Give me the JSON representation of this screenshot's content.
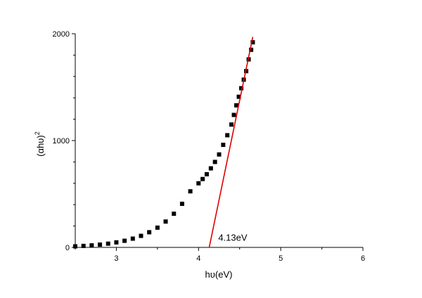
{
  "chart_data": {
    "type": "scatter",
    "title": "",
    "xlabel": "hυ(eV)",
    "ylabel_base": "(αhυ)",
    "ylabel_sup": "2",
    "xlim": [
      2.5,
      6
    ],
    "ylim": [
      0,
      2000
    ],
    "x_ticks": [
      3,
      4,
      5,
      6
    ],
    "y_ticks": [
      0,
      1000,
      2000
    ],
    "grid": false,
    "legend": "none",
    "series": [
      {
        "marker": "square",
        "color": "#000000",
        "x": [
          2.5,
          2.6,
          2.7,
          2.8,
          2.9,
          3.0,
          3.1,
          3.2,
          3.3,
          3.4,
          3.5,
          3.6,
          3.7,
          3.8,
          3.9,
          4.0,
          4.05,
          4.1,
          4.15,
          4.2,
          4.25,
          4.3,
          4.35,
          4.4,
          4.43,
          4.46,
          4.49,
          4.52,
          4.55,
          4.58,
          4.61,
          4.64,
          4.66
        ],
        "y": [
          10,
          14,
          19,
          26,
          35,
          47,
          62,
          82,
          108,
          142,
          185,
          242,
          315,
          408,
          525,
          600,
          640,
          685,
          740,
          800,
          870,
          960,
          1050,
          1150,
          1240,
          1330,
          1410,
          1490,
          1570,
          1650,
          1760,
          1850,
          1920
        ]
      }
    ],
    "fit_line": {
      "color": "#dd0000",
      "x": [
        4.13,
        4.66
      ],
      "y": [
        0,
        1970
      ]
    },
    "annotation": {
      "text": "4.13eV",
      "x": 4.24,
      "y": 62
    }
  }
}
